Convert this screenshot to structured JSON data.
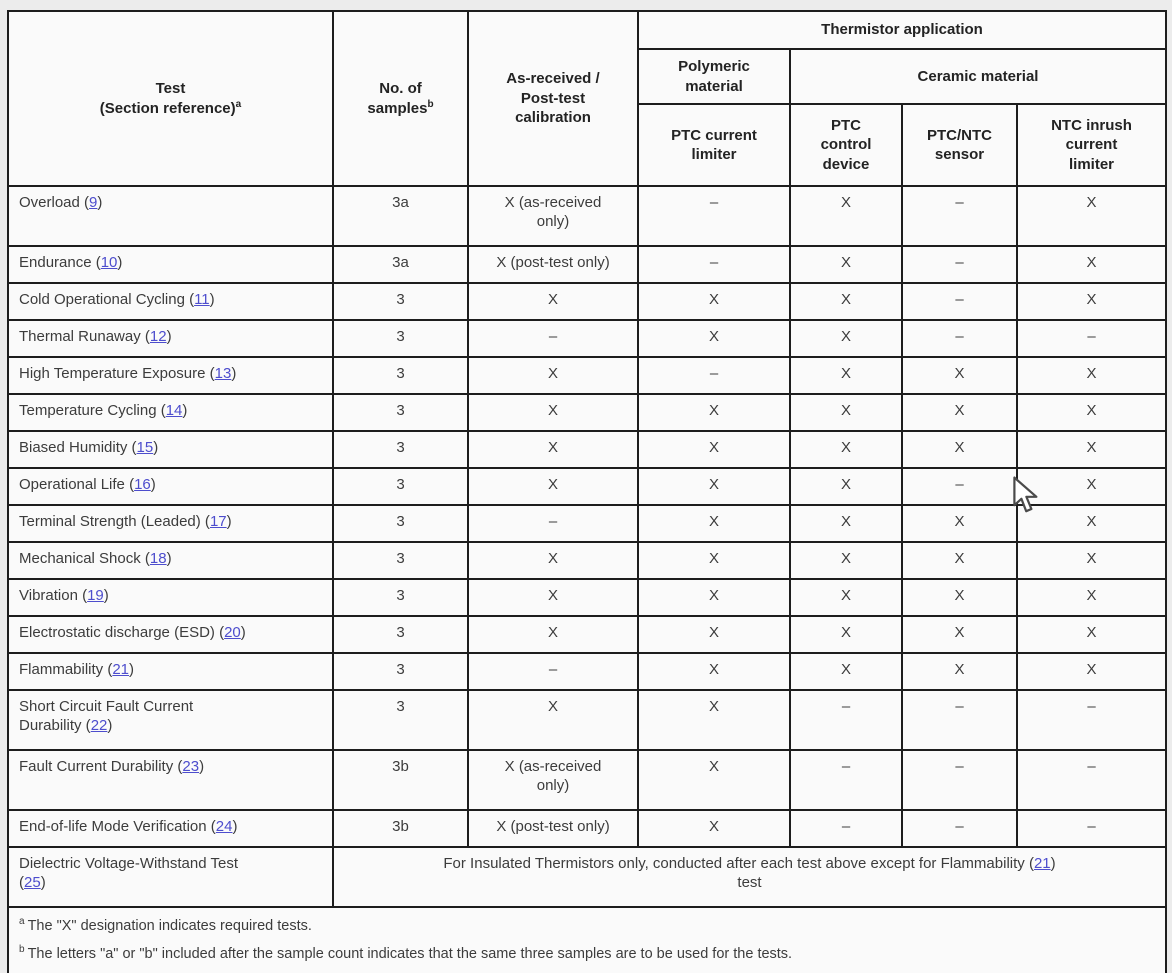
{
  "colors": {
    "link": "#4d4dcd",
    "border": "#1d1d1d",
    "cell_background": "#fafafa",
    "page_background": "#ececec",
    "text": "#3c3c3c"
  },
  "table": {
    "header": {
      "test": "Test\n(Section reference)",
      "test_sup": "a",
      "samples": "No. of\nsamples",
      "samples_sup": "b",
      "calibration": "As-received /\nPost-test\ncalibration",
      "thermistor_application": "Thermistor application",
      "polymeric_material": "Polymeric\nmaterial",
      "ceramic_material": "Ceramic material",
      "app_columns": [
        "PTC current\nlimiter",
        "PTC\ncontrol\ndevice",
        "PTC/NTC\nsensor",
        "NTC inrush\ncurrent\nlimiter"
      ]
    },
    "rows": [
      {
        "name": "Overload",
        "ref": "9",
        "samples": "3a",
        "cal": "X (as-received\nonly)",
        "apps": [
          "–",
          "X",
          "–",
          "X"
        ],
        "tall": true
      },
      {
        "name": "Endurance",
        "ref": "10",
        "samples": "3a",
        "cal": "X (post-test only)",
        "apps": [
          "–",
          "X",
          "–",
          "X"
        ]
      },
      {
        "name": "Cold Operational Cycling",
        "ref": "11",
        "samples": "3",
        "cal": "X",
        "apps": [
          "X",
          "X",
          "–",
          "X"
        ]
      },
      {
        "name": "Thermal Runaway",
        "ref": "12",
        "samples": "3",
        "cal": "–",
        "apps": [
          "X",
          "X",
          "–",
          "–"
        ]
      },
      {
        "name": "High Temperature Exposure",
        "ref": "13",
        "samples": "3",
        "cal": "X",
        "apps": [
          "–",
          "X",
          "X",
          "X"
        ]
      },
      {
        "name": "Temperature Cycling",
        "ref": "14",
        "samples": "3",
        "cal": "X",
        "apps": [
          "X",
          "X",
          "X",
          "X"
        ]
      },
      {
        "name": "Biased Humidity",
        "ref": "15",
        "samples": "3",
        "cal": "X",
        "apps": [
          "X",
          "X",
          "X",
          "X"
        ]
      },
      {
        "name": "Operational Life",
        "ref": "16",
        "samples": "3",
        "cal": "X",
        "apps": [
          "X",
          "X",
          "–",
          "X"
        ]
      },
      {
        "name": "Terminal Strength (Leaded)",
        "ref": "17",
        "samples": "3",
        "cal": "–",
        "apps": [
          "X",
          "X",
          "X",
          "X"
        ]
      },
      {
        "name": "Mechanical Shock",
        "ref": "18",
        "samples": "3",
        "cal": "X",
        "apps": [
          "X",
          "X",
          "X",
          "X"
        ]
      },
      {
        "name": "Vibration",
        "ref": "19",
        "samples": "3",
        "cal": "X",
        "apps": [
          "X",
          "X",
          "X",
          "X"
        ]
      },
      {
        "name": "Electrostatic discharge (ESD)",
        "ref": "20",
        "samples": "3",
        "cal": "X",
        "apps": [
          "X",
          "X",
          "X",
          "X"
        ]
      },
      {
        "name": "Flammability",
        "ref": "21",
        "samples": "3",
        "cal": "–",
        "apps": [
          "X",
          "X",
          "X",
          "X"
        ]
      },
      {
        "name": "Short Circuit Fault Current\nDurability",
        "ref": "22",
        "samples": "3",
        "cal": "X",
        "apps": [
          "X",
          "–",
          "–",
          "–"
        ],
        "tall": true
      },
      {
        "name": "Fault Current Durability",
        "ref": "23",
        "samples": "3b",
        "cal": "X (as-received\nonly)",
        "apps": [
          "X",
          "–",
          "–",
          "–"
        ],
        "tall": true
      },
      {
        "name": "End-of-life Mode Verification",
        "ref": "24",
        "samples": "3b",
        "cal": "X (post-test only)",
        "apps": [
          "X",
          "–",
          "–",
          "–"
        ]
      }
    ],
    "dielectric": {
      "name": "Dielectric Voltage-Withstand Test",
      "ref": "25",
      "note_before": "For Insulated Thermistors only, conducted after each test above except for Flammability (",
      "note_ref": "21",
      "note_after": ")\ntest"
    },
    "footnotes": [
      {
        "marker": "a",
        "text": "The \"X\" designation indicates required tests."
      },
      {
        "marker": "b",
        "text": "The letters \"a\" or \"b\" included after the sample count indicates that the same three samples are to be used for the tests."
      }
    ]
  }
}
